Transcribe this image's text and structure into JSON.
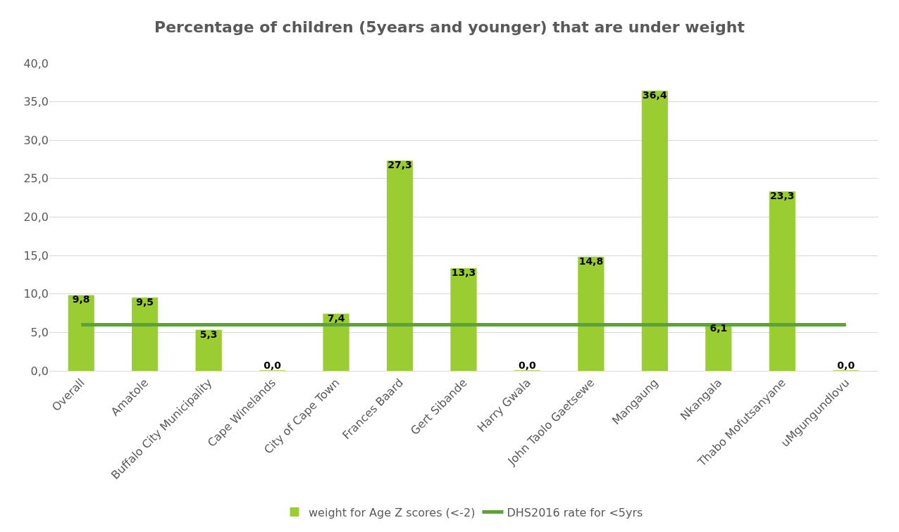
{
  "chart_data": {
    "type": "bar",
    "title": "Percentage of children (5years and younger) that are under weight",
    "categories": [
      "Overall",
      "Amatole",
      "Buffalo City Municipality",
      "Cape Winelands",
      "City of Cape Town",
      "Frances Baard",
      "Gert Sibande",
      "Harry Gwala",
      "John Taolo Gaetsewe",
      "Mangaung",
      "Nkangala",
      "Thabo Mofutsanyane",
      "uMgungundlovu"
    ],
    "series": [
      {
        "name": "weight for Age Z scores (<-2)",
        "color": "#9acd32",
        "values": [
          9.8,
          9.5,
          5.3,
          0.0,
          7.4,
          27.3,
          13.3,
          0.0,
          14.8,
          36.4,
          6.1,
          23.3,
          0.0
        ],
        "value_labels": [
          "9,8",
          "9,5",
          "5,3",
          "0,0",
          "7,4",
          "27,3",
          "13,3",
          "0,0",
          "14,8",
          "36,4",
          "6,1",
          "23,3",
          "0,0"
        ]
      },
      {
        "name": "DHS2016 rate for <5yrs",
        "type": "line",
        "color": "#5da13a",
        "values": [
          6.0,
          6.0,
          6.0,
          6.0,
          6.0,
          6.0,
          6.0,
          6.0,
          6.0,
          6.0,
          6.0,
          6.0,
          6.0
        ]
      }
    ],
    "ylim": [
      0,
      40
    ],
    "yticks": [
      {
        "value": 0,
        "label": "0,0"
      },
      {
        "value": 5,
        "label": "5,0"
      },
      {
        "value": 10,
        "label": "10,0"
      },
      {
        "value": 15,
        "label": "15,0"
      },
      {
        "value": 20,
        "label": "20,0"
      },
      {
        "value": 25,
        "label": "25,0"
      },
      {
        "value": 30,
        "label": "30,0"
      },
      {
        "value": 35,
        "label": "35,0"
      },
      {
        "value": 40,
        "label": "40,0"
      }
    ],
    "grid": "y",
    "legend": "bottom",
    "marker": "none",
    "line_style": "solid"
  }
}
